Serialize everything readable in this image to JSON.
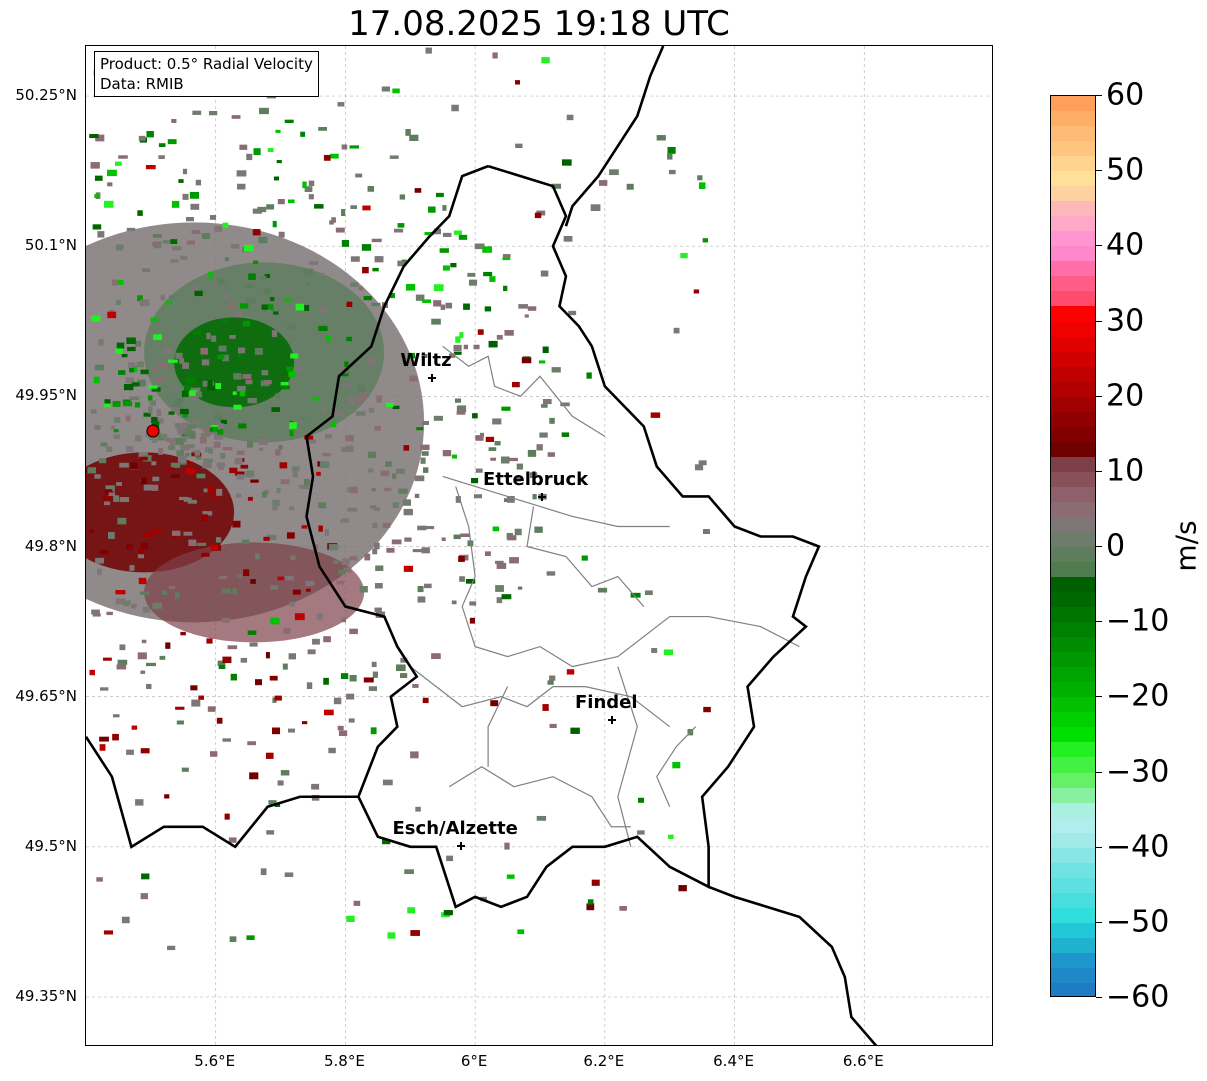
{
  "title": "17.08.2025 19:18 UTC",
  "info": {
    "product": "Product: 0.5° Radial Velocity",
    "data_source": "Data: RMIB"
  },
  "map": {
    "lon_range": [
      5.4,
      6.8
    ],
    "lat_range": [
      49.3,
      50.3
    ],
    "lat_ticks": [
      {
        "value": 50.25,
        "label": "50.25°N"
      },
      {
        "value": 50.1,
        "label": "50.1°N"
      },
      {
        "value": 49.95,
        "label": "49.95°N"
      },
      {
        "value": 49.8,
        "label": "49.8°N"
      },
      {
        "value": 49.65,
        "label": "49.65°N"
      },
      {
        "value": 49.5,
        "label": "49.5°N"
      },
      {
        "value": 49.35,
        "label": "49.35°N"
      }
    ],
    "lon_ticks": [
      {
        "value": 5.6,
        "label": "5.6°E"
      },
      {
        "value": 5.8,
        "label": "5.8°E"
      },
      {
        "value": 6.0,
        "label": "6°E"
      },
      {
        "value": 6.2,
        "label": "6.2°E"
      },
      {
        "value": 6.4,
        "label": "6.4°E"
      },
      {
        "value": 6.6,
        "label": "6.6°E"
      }
    ],
    "radar_site": {
      "lon": 5.505,
      "lat": 49.914
    },
    "cities": [
      {
        "name": "Wiltz",
        "lon": 5.935,
        "lat": 49.967
      },
      {
        "name": "Ettelbruck",
        "lon": 6.104,
        "lat": 49.848
      },
      {
        "name": "Findel",
        "lon": 6.213,
        "lat": 49.626
      },
      {
        "name": "Esch/Alzette",
        "lon": 5.98,
        "lat": 49.5
      }
    ],
    "colors": {
      "border": "#000000",
      "cantons": "#808080",
      "grid": "#bbbbbb",
      "radar_site": "#ee0000"
    }
  },
  "colorbar": {
    "label": "m/s",
    "min": -60,
    "max": 60,
    "ticks": [
      "60",
      "50",
      "40",
      "30",
      "20",
      "10",
      "0",
      "−10",
      "−20",
      "−30",
      "−40",
      "−50",
      "−60"
    ],
    "tick_values": [
      60,
      50,
      40,
      30,
      20,
      10,
      0,
      -10,
      -20,
      -30,
      -40,
      -50,
      -60
    ],
    "colors_top_to_bottom": [
      "#ffa05a",
      "#ffae66",
      "#ffbb75",
      "#ffc57f",
      "#ffd48e",
      "#ffe098",
      "#ffd0a0",
      "#ffb8b8",
      "#ffa8c8",
      "#ff96d0",
      "#ff88cc",
      "#ff6ea8",
      "#ff5c88",
      "#ff4c6c",
      "#ff0000",
      "#f00000",
      "#e00000",
      "#d00000",
      "#c00000",
      "#b00000",
      "#a00000",
      "#900000",
      "#800000",
      "#700000",
      "#7e4048",
      "#885058",
      "#8e606a",
      "#8a6c72",
      "#7e7676",
      "#6e7c6c",
      "#5e7c5e",
      "#4e7c4e",
      "#006000",
      "#006800",
      "#007400",
      "#008000",
      "#008c00",
      "#009800",
      "#00a400",
      "#00b000",
      "#00c000",
      "#00d000",
      "#00e000",
      "#22f022",
      "#44f044",
      "#66f066",
      "#88f0a0",
      "#aaf0e0",
      "#b0eeee",
      "#a0eaea",
      "#88e6e6",
      "#70e2e2",
      "#5ee0e0",
      "#48dede",
      "#30dede",
      "#22c8d8",
      "#20b0d0",
      "#1e96cc",
      "#1e88c8",
      "#1e7cc4"
    ]
  }
}
